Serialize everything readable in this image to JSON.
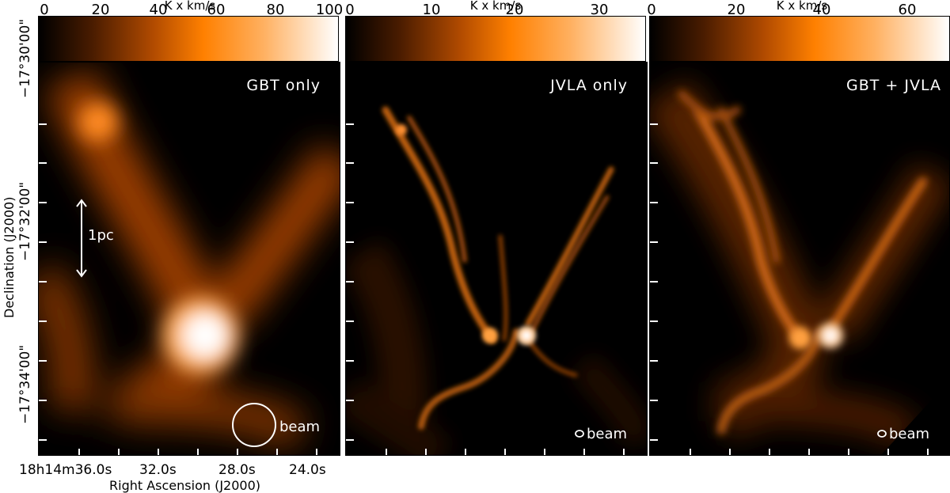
{
  "colorbars": [
    {
      "title": "K x km/s",
      "ticks": [
        "0",
        "20",
        "40",
        "60",
        "80",
        "100"
      ]
    },
    {
      "title": "K x km/s",
      "ticks": [
        "0",
        "10",
        "20",
        "30"
      ]
    },
    {
      "title": "K x km/s",
      "ticks": [
        "0",
        "20",
        "40",
        "60"
      ]
    }
  ],
  "panels": [
    {
      "label": "GBT only",
      "beam_label": "beam",
      "scale_label": "1pc"
    },
    {
      "label": "JVLA only",
      "beam_label": "beam"
    },
    {
      "label": "GBT + JVLA",
      "beam_label": "beam"
    }
  ],
  "axes": {
    "ylabel": "Declination (J2000)",
    "yticks": [
      "−17°30'00\"",
      "−17°32'00\"",
      "−17°34'00\""
    ],
    "xlabel": "Right Ascension (J2000)",
    "xticks": [
      "18h14m36.0s",
      "32.0s",
      "28.0s",
      "24.0s"
    ]
  },
  "colors": {
    "accent": "#ff8000",
    "background": "#000000",
    "overlay_text": "#ffffff"
  }
}
